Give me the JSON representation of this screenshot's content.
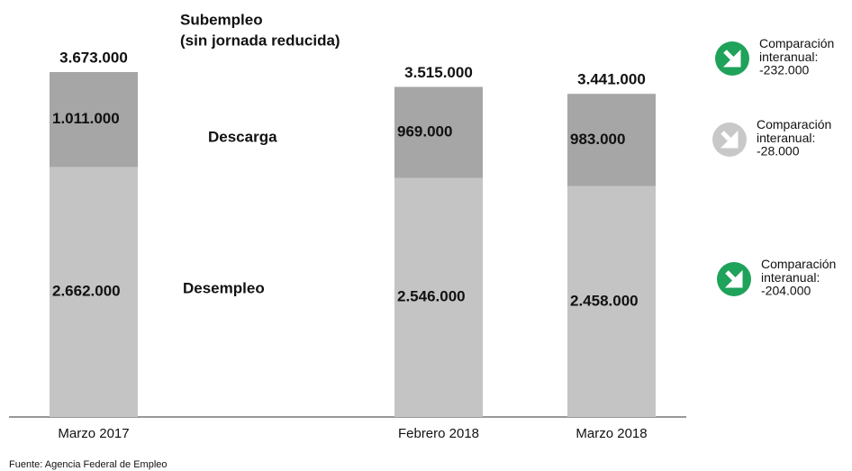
{
  "chart_data": {
    "type": "stacked_bar",
    "title": "Subempleo",
    "subtitle": "(sin jornada reducida)",
    "categories": [
      "Marzo 2017",
      "Febrero 2018",
      "Marzo 2018"
    ],
    "series": [
      {
        "name": "Desempleo",
        "color": "#c4c4c4",
        "values": [
          2662000,
          2546000,
          2458000
        ],
        "value_labels": [
          "2.662.000",
          "2.546.000",
          "2.458.000"
        ]
      },
      {
        "name": "Descarga",
        "color": "#a6a6a6",
        "values": [
          1011000,
          969000,
          983000
        ],
        "value_labels": [
          "1.011.000",
          "969.000",
          "983.000"
        ]
      }
    ],
    "totals": [
      3673000,
      3515000,
      3441000
    ],
    "total_labels": [
      "3.673.000",
      "3.515.000",
      "3.441.000"
    ],
    "comparisons": [
      {
        "label": "Comparación interanual:",
        "value": -232000,
        "value_label": "-232.000",
        "color": "#1fa25a"
      },
      {
        "label": "Comparación interanual:",
        "value": -28000,
        "value_label": "-28.000",
        "color": "#c8c8c8"
      },
      {
        "label": "Comparación interanual:",
        "value": -204000,
        "value_label": "-204.000",
        "color": "#1fa25a"
      }
    ],
    "source": "Fuente: Agencia Federal de Empleo"
  }
}
